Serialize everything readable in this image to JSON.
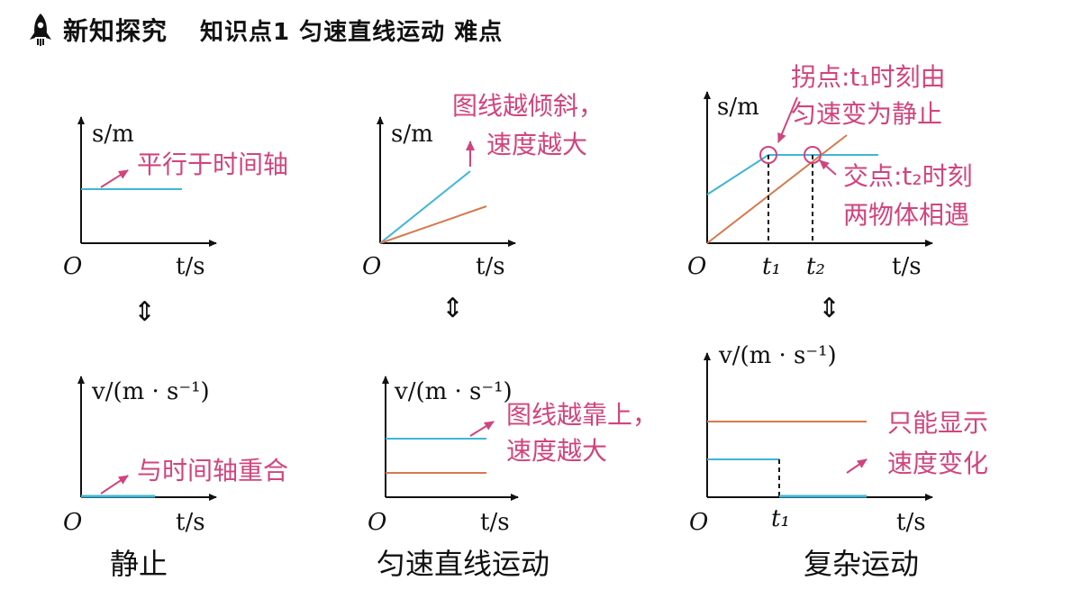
{
  "header": {
    "title": "新知探究",
    "subtitle": "知识点1  匀速直线运动  难点"
  },
  "graphs": {
    "s_label": "s/m",
    "v_label": "v/(m · s⁻¹)",
    "t_label": "t/s",
    "origin": "O",
    "t1": "t₁",
    "t2": "t₂",
    "equiv_symbol": "⇕"
  },
  "annotations": {
    "rest_st": "平行于时间轴",
    "uniform_st_line1": "图线越倾斜，",
    "uniform_st_line2": "速度越大",
    "complex_turn_line1": "拐点:t₁时刻由",
    "complex_turn_line2": "匀速变为静止",
    "complex_cross_line1": "交点:t₂时刻",
    "complex_cross_line2": "两物体相遇",
    "rest_vt": "与时间轴重合",
    "uniform_vt_line1": "图线越靠上，",
    "uniform_vt_line2": "速度越大",
    "complex_vt_line1": "只能显示",
    "complex_vt_line2": "速度变化"
  },
  "captions": {
    "rest": "静止",
    "uniform": "匀速直线运动",
    "complex": "复杂运动"
  },
  "colors": {
    "blue": "#3fb6d6",
    "orange": "#d57a4e",
    "pink": "#d0457e",
    "axis": "#111111"
  }
}
